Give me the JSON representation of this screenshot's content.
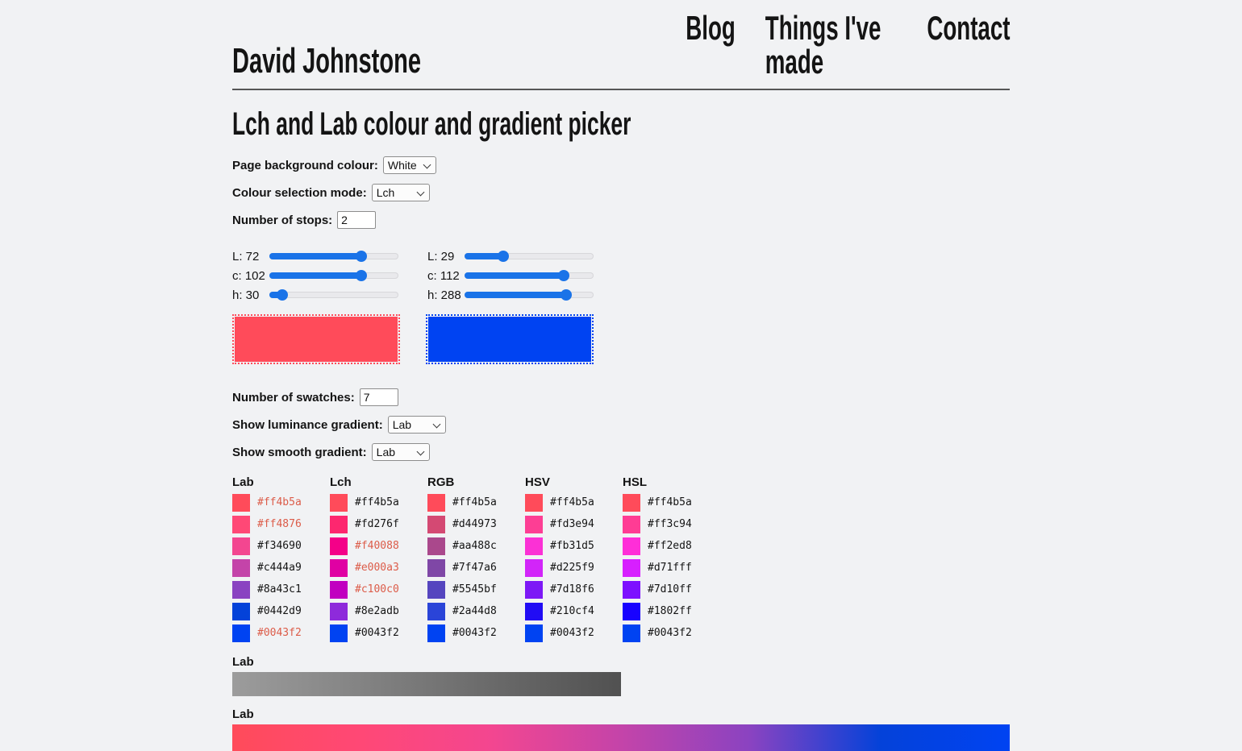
{
  "header": {
    "logo": "David Johnstone",
    "nav": [
      "Blog",
      "Things I've made",
      "Contact"
    ]
  },
  "title": "Lch and Lab colour and gradient picker",
  "controls": {
    "page_background": {
      "label": "Page background colour:",
      "value": "White"
    },
    "mode": {
      "label": "Colour selection mode:",
      "value": "Lch"
    },
    "stops_count": {
      "label": "Number of stops:",
      "value": "2"
    },
    "swatch_count": {
      "label": "Number of swatches:",
      "value": "7"
    },
    "luminance": {
      "label": "Show luminance gradient:",
      "value": "Lab"
    },
    "smooth": {
      "label": "Show smooth gradient:",
      "value": "Lab"
    }
  },
  "stops": [
    {
      "color": "#ff4b5a",
      "sliders": [
        {
          "label": "L: 72",
          "value": 72,
          "pct": 71
        },
        {
          "label": "c: 102",
          "value": 102,
          "pct": 71
        },
        {
          "label": "h: 30",
          "value": 30,
          "pct": 10
        }
      ]
    },
    {
      "color": "#0043f2",
      "sliders": [
        {
          "label": "L: 29",
          "value": 29,
          "pct": 30
        },
        {
          "label": "c: 112",
          "value": 112,
          "pct": 77
        },
        {
          "label": "h: 288",
          "value": 288,
          "pct": 79
        }
      ]
    }
  ],
  "swatch_table": {
    "columns": [
      {
        "name": "Lab",
        "swatches": [
          {
            "hex": "#ff4b5a",
            "clipped": true
          },
          {
            "hex": "#ff4876",
            "clipped": true
          },
          {
            "hex": "#f34690",
            "clipped": false
          },
          {
            "hex": "#c444a9",
            "clipped": false
          },
          {
            "hex": "#8a43c1",
            "clipped": false
          },
          {
            "hex": "#0442d9",
            "clipped": false
          },
          {
            "hex": "#0043f2",
            "clipped": true
          }
        ]
      },
      {
        "name": "Lch",
        "swatches": [
          {
            "hex": "#ff4b5a",
            "clipped": false
          },
          {
            "hex": "#fd276f",
            "clipped": false
          },
          {
            "hex": "#f40088",
            "clipped": true
          },
          {
            "hex": "#e000a3",
            "clipped": true
          },
          {
            "hex": "#c100c0",
            "clipped": true
          },
          {
            "hex": "#8e2adb",
            "clipped": false
          },
          {
            "hex": "#0043f2",
            "clipped": false
          }
        ]
      },
      {
        "name": "RGB",
        "swatches": [
          {
            "hex": "#ff4b5a",
            "clipped": false
          },
          {
            "hex": "#d44973",
            "clipped": false
          },
          {
            "hex": "#aa488c",
            "clipped": false
          },
          {
            "hex": "#7f47a6",
            "clipped": false
          },
          {
            "hex": "#5545bf",
            "clipped": false
          },
          {
            "hex": "#2a44d8",
            "clipped": false
          },
          {
            "hex": "#0043f2",
            "clipped": false
          }
        ]
      },
      {
        "name": "HSV",
        "swatches": [
          {
            "hex": "#ff4b5a",
            "clipped": false
          },
          {
            "hex": "#fd3e94",
            "clipped": false
          },
          {
            "hex": "#fb31d5",
            "clipped": false
          },
          {
            "hex": "#d225f9",
            "clipped": false
          },
          {
            "hex": "#7d18f6",
            "clipped": false
          },
          {
            "hex": "#210cf4",
            "clipped": false
          },
          {
            "hex": "#0043f2",
            "clipped": false
          }
        ]
      },
      {
        "name": "HSL",
        "swatches": [
          {
            "hex": "#ff4b5a",
            "clipped": false
          },
          {
            "hex": "#ff3c94",
            "clipped": false
          },
          {
            "hex": "#ff2ed8",
            "clipped": false
          },
          {
            "hex": "#d71fff",
            "clipped": false
          },
          {
            "hex": "#7d10ff",
            "clipped": false
          },
          {
            "hex": "#1802ff",
            "clipped": false
          },
          {
            "hex": "#0043f2",
            "clipped": false
          }
        ]
      }
    ]
  },
  "luminance_gradient": {
    "label": "Lab",
    "stops": [
      "#9c9c9c",
      "#515151"
    ]
  },
  "smooth_gradient": {
    "label": "Lab",
    "stops": [
      "#ff4b5a",
      "#ff4876",
      "#f34690",
      "#c444a9",
      "#8a43c1",
      "#0442d9",
      "#0043f2"
    ]
  },
  "colors": {
    "page_background": "#f1f2f4",
    "slider_accent": "#1a73e8",
    "slider_track": "#e9e9ec",
    "clipped_text": "#dc5c49",
    "rule": "#565656"
  }
}
